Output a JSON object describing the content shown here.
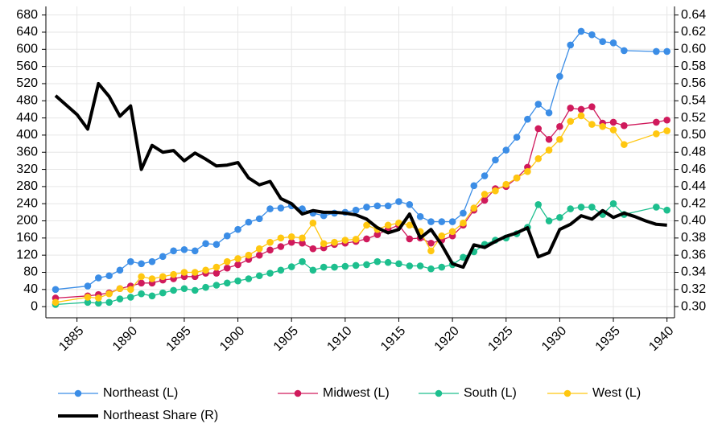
{
  "chart_data": {
    "type": "line",
    "x": [
      1883,
      1886,
      1887,
      1888,
      1889,
      1890,
      1891,
      1892,
      1893,
      1894,
      1895,
      1896,
      1897,
      1898,
      1899,
      1900,
      1901,
      1902,
      1903,
      1904,
      1905,
      1906,
      1907,
      1908,
      1909,
      1910,
      1911,
      1912,
      1913,
      1914,
      1915,
      1916,
      1917,
      1918,
      1919,
      1920,
      1921,
      1922,
      1923,
      1924,
      1925,
      1926,
      1927,
      1928,
      1929,
      1930,
      1931,
      1932,
      1933,
      1934,
      1935,
      1936,
      1939,
      1940
    ],
    "series": [
      {
        "name": "Northeast (L)",
        "color": "#3b8de6",
        "values": [
          40,
          48,
          67,
          72,
          85,
          105,
          100,
          105,
          117,
          130,
          133,
          130,
          147,
          145,
          165,
          180,
          197,
          205,
          228,
          230,
          235,
          228,
          218,
          212,
          218,
          220,
          225,
          232,
          235,
          235,
          245,
          238,
          210,
          198,
          198,
          198,
          218,
          282,
          305,
          342,
          365,
          395,
          437,
          472,
          452,
          537,
          610,
          642,
          634,
          618,
          615,
          597,
          595,
          595
        ]
      },
      {
        "name": "Midwest (L)",
        "color": "#d01a5c",
        "values": [
          20,
          25,
          28,
          32,
          42,
          48,
          55,
          55,
          62,
          65,
          70,
          70,
          78,
          78,
          90,
          98,
          110,
          120,
          132,
          140,
          150,
          148,
          135,
          137,
          145,
          148,
          152,
          158,
          168,
          180,
          190,
          158,
          160,
          148,
          155,
          165,
          190,
          225,
          248,
          275,
          280,
          300,
          325,
          415,
          390,
          420,
          463,
          460,
          466,
          428,
          430,
          422,
          430,
          435
        ]
      },
      {
        "name": "South (L)",
        "color": "#1dbf8e",
        "values": [
          5,
          10,
          8,
          10,
          18,
          22,
          30,
          25,
          32,
          38,
          42,
          38,
          45,
          50,
          55,
          60,
          65,
          72,
          78,
          85,
          93,
          105,
          85,
          92,
          92,
          94,
          96,
          98,
          105,
          103,
          100,
          95,
          95,
          88,
          92,
          98,
          115,
          128,
          145,
          155,
          160,
          170,
          185,
          238,
          200,
          208,
          228,
          232,
          232,
          215,
          240,
          215,
          232,
          225
        ]
      },
      {
        "name": "West (L)",
        "color": "#ffc710",
        "values": [
          10,
          22,
          20,
          30,
          42,
          40,
          70,
          65,
          70,
          75,
          80,
          80,
          85,
          92,
          105,
          112,
          120,
          135,
          150,
          160,
          163,
          160,
          195,
          147,
          150,
          155,
          157,
          190,
          180,
          190,
          195,
          190,
          175,
          130,
          165,
          175,
          195,
          230,
          262,
          270,
          285,
          300,
          315,
          345,
          365,
          390,
          432,
          445,
          425,
          420,
          412,
          378,
          403,
          410
        ]
      },
      {
        "name": "Northeast Share (R)",
        "color": "#000000",
        "axis": "y2",
        "x": [
          1883,
          1884,
          1885,
          1886,
          1887,
          1888,
          1889,
          1890,
          1891,
          1892,
          1893,
          1894,
          1895,
          1896,
          1897,
          1898,
          1899,
          1900,
          1901,
          1902,
          1903,
          1904,
          1905,
          1906,
          1907,
          1908,
          1909,
          1910,
          1911,
          1912,
          1913,
          1914,
          1915,
          1916,
          1917,
          1918,
          1919,
          1920,
          1921,
          1922,
          1923,
          1924,
          1925,
          1926,
          1927,
          1928,
          1929,
          1930,
          1931,
          1932,
          1933,
          1934,
          1935,
          1936,
          1937,
          1938,
          1939,
          1940
        ],
        "values": [
          0.546,
          0.535,
          0.524,
          0.507,
          0.56,
          0.545,
          0.522,
          0.534,
          0.46,
          0.488,
          0.48,
          0.482,
          0.47,
          0.479,
          0.472,
          0.464,
          0.465,
          0.468,
          0.45,
          0.442,
          0.446,
          0.426,
          0.42,
          0.408,
          0.412,
          0.41,
          0.41,
          0.409,
          0.407,
          0.402,
          0.392,
          0.386,
          0.39,
          0.408,
          0.38,
          0.39,
          0.372,
          0.35,
          0.346,
          0.372,
          0.369,
          0.376,
          0.382,
          0.386,
          0.392,
          0.358,
          0.363,
          0.39,
          0.396,
          0.406,
          0.402,
          0.412,
          0.404,
          0.409,
          0.405,
          0.4,
          0.396,
          0.395
        ]
      }
    ],
    "xlim": [
      1882.1,
      1940.7
    ],
    "xticks": [
      1885,
      1890,
      1895,
      1900,
      1905,
      1910,
      1915,
      1920,
      1925,
      1930,
      1935,
      1940
    ],
    "ylim": [
      -26,
      700
    ],
    "yticks": [
      0,
      40,
      80,
      120,
      160,
      200,
      240,
      280,
      320,
      360,
      400,
      440,
      480,
      520,
      560,
      600,
      640,
      680
    ],
    "y2lim": [
      0.287,
      0.65
    ],
    "y2ticks": [
      {
        "value": 0.3,
        "label": "0.30"
      },
      0.32,
      0.34,
      0.36,
      0.38,
      {
        "value": 0.4,
        "label": "0.40"
      },
      0.42,
      0.44,
      0.46,
      0.48,
      {
        "value": 0.5,
        "label": "0.50"
      },
      0.52,
      0.54,
      0.56,
      0.58,
      {
        "value": 0.6,
        "label": "0.60"
      },
      0.62,
      0.64
    ],
    "grid": true
  }
}
